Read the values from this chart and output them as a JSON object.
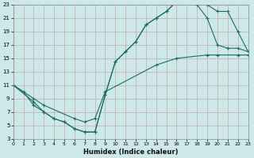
{
  "xlabel": "Humidex (Indice chaleur)",
  "bg_color": "#cce8e8",
  "grid_color": "#c8a8a8",
  "line_color": "#1a6e5e",
  "xlim": [
    0,
    23
  ],
  "ylim": [
    3,
    23
  ],
  "xtick_labels": [
    "0",
    "1",
    "2",
    "3",
    "4",
    "5",
    "6",
    "7",
    "8",
    "9",
    "10",
    "11",
    "12",
    "13",
    "14",
    "15",
    "16",
    "17",
    "18",
    "19",
    "20",
    "21",
    "22",
    "23"
  ],
  "xticks": [
    0,
    1,
    2,
    3,
    4,
    5,
    6,
    7,
    8,
    9,
    10,
    11,
    12,
    13,
    14,
    15,
    16,
    17,
    18,
    19,
    20,
    21,
    22,
    23
  ],
  "yticks": [
    3,
    5,
    7,
    9,
    11,
    13,
    15,
    17,
    19,
    21,
    23
  ],
  "line1_x": [
    0,
    1,
    2,
    3,
    4,
    5,
    6,
    7,
    8,
    9,
    10,
    11,
    12,
    13,
    14,
    15,
    16,
    17,
    18,
    19,
    20,
    21,
    22,
    23
  ],
  "line1_y": [
    11,
    10,
    8,
    7,
    6,
    5.5,
    4.5,
    4,
    4,
    9.5,
    14.5,
    16,
    17.5,
    20,
    21,
    22,
    23.5,
    23.5,
    23,
    21,
    17,
    16.5,
    16.5,
    16
  ],
  "line2_x": [
    0,
    2,
    3,
    4,
    5,
    6,
    7,
    8,
    9,
    10,
    11,
    12,
    13,
    14,
    15,
    16,
    17,
    18,
    19,
    20,
    21,
    22,
    23
  ],
  "line2_y": [
    11,
    8.5,
    7,
    6,
    5.5,
    4.5,
    4,
    4,
    9.5,
    14.5,
    16,
    17.5,
    20,
    21,
    22,
    23.5,
    23.5,
    23.5,
    23,
    22,
    22,
    19,
    16
  ],
  "line3_x": [
    0,
    2,
    3,
    6,
    7,
    8,
    9,
    14,
    16,
    19,
    20,
    22,
    23
  ],
  "line3_y": [
    11,
    9,
    8,
    6,
    5.5,
    6,
    10,
    14,
    15,
    15.5,
    15.5,
    15.5,
    15.5
  ]
}
